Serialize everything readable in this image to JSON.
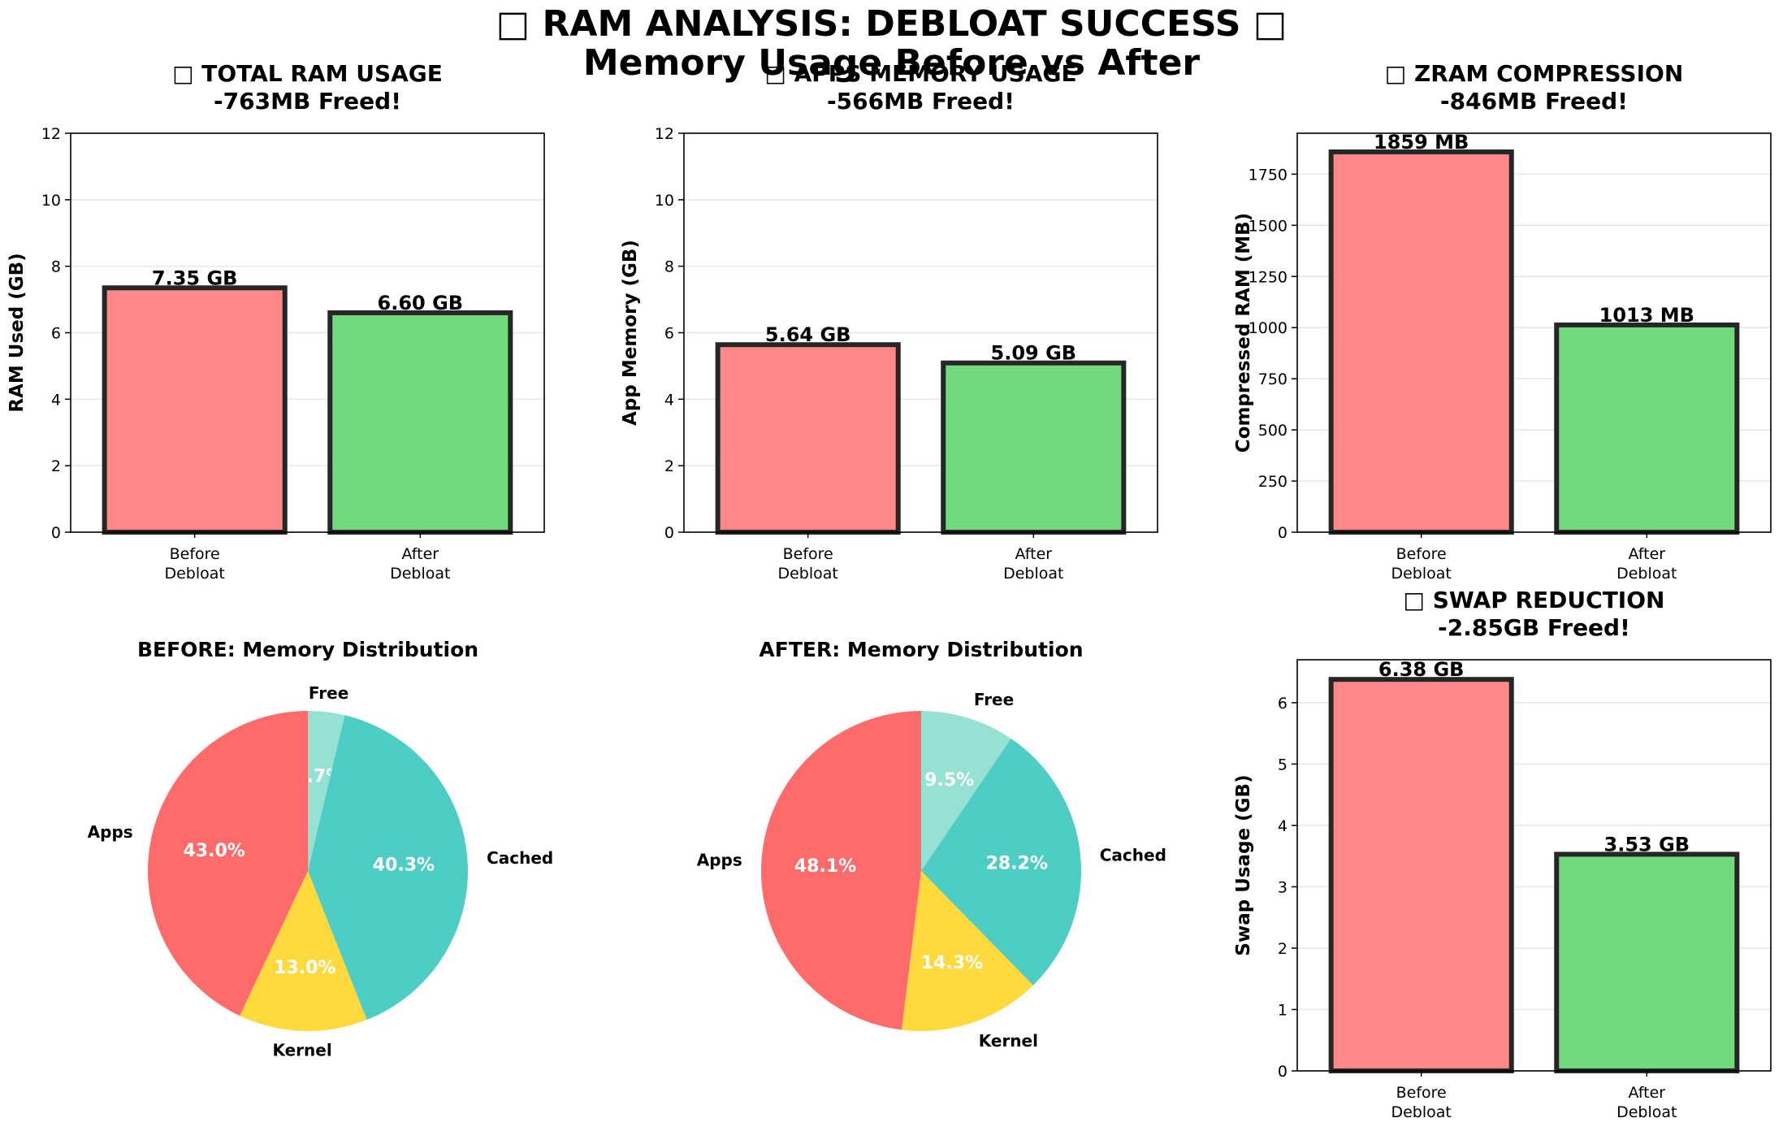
{
  "figure": {
    "title_line1": "□ RAM ANALYSIS: DEBLOAT SUCCESS □",
    "title_line2": "Memory Usage Before vs After"
  },
  "chart_data": [
    {
      "type": "bar",
      "id": "total-ram",
      "title": [
        "□ TOTAL RAM USAGE",
        "-763MB Freed!"
      ],
      "categories": [
        "Before\nDebloat",
        "After\nDebloat"
      ],
      "values": [
        7.35,
        6.6
      ],
      "value_labels": [
        "7.35 GB",
        "6.60 GB"
      ],
      "ylabel": "RAM Used (GB)",
      "ylim": [
        0,
        12
      ],
      "yticks": [
        0,
        2,
        4,
        6,
        8,
        10,
        12
      ],
      "colors": [
        "#ff8787",
        "#72d97f"
      ],
      "grid": "y"
    },
    {
      "type": "bar",
      "id": "apps-memory",
      "title": [
        "□ APPS MEMORY USAGE",
        "-566MB Freed!"
      ],
      "categories": [
        "Before\nDebloat",
        "After\nDebloat"
      ],
      "values": [
        5.64,
        5.09
      ],
      "value_labels": [
        "5.64 GB",
        "5.09 GB"
      ],
      "ylabel": "App Memory (GB)",
      "ylim": [
        0,
        12
      ],
      "yticks": [
        0,
        2,
        4,
        6,
        8,
        10,
        12
      ],
      "colors": [
        "#ff8787",
        "#72d97f"
      ],
      "grid": "y"
    },
    {
      "type": "bar",
      "id": "zram",
      "title": [
        "□ ZRAM COMPRESSION",
        "-846MB Freed!"
      ],
      "categories": [
        "Before\nDebloat",
        "After\nDebloat"
      ],
      "values": [
        1859,
        1013
      ],
      "value_labels": [
        "1859 MB",
        "1013 MB"
      ],
      "ylabel": "Compressed RAM (MB)",
      "ylim": [
        0,
        1950
      ],
      "yticks": [
        0,
        250,
        500,
        750,
        1000,
        1250,
        1500,
        1750
      ],
      "colors": [
        "#ff8787",
        "#72d97f"
      ],
      "grid": "y"
    },
    {
      "type": "pie",
      "id": "before-dist",
      "title": [
        "BEFORE: Memory Distribution"
      ],
      "labels": [
        "Free",
        "Cached",
        "Kernel",
        "Apps"
      ],
      "values": [
        3.7,
        40.3,
        13.0,
        43.0
      ],
      "pct_labels": [
        "3.7%",
        "40.3%",
        "13.0%",
        "43.0%"
      ],
      "colors": [
        "#95e1d3",
        "#4ecdc4",
        "#ffd93d",
        "#ff6b6b"
      ],
      "start": "top, clockwise"
    },
    {
      "type": "pie",
      "id": "after-dist",
      "title": [
        "AFTER: Memory Distribution"
      ],
      "labels": [
        "Free",
        "Cached",
        "Kernel",
        "Apps"
      ],
      "values": [
        9.5,
        28.2,
        14.3,
        48.1
      ],
      "pct_labels": [
        "9.5%",
        "28.2%",
        "14.3%",
        "48.1%"
      ],
      "colors": [
        "#95e1d3",
        "#4ecdc4",
        "#ffd93d",
        "#ff6b6b"
      ],
      "start": "top, clockwise"
    },
    {
      "type": "bar",
      "id": "swap",
      "title": [
        "□ SWAP REDUCTION",
        "-2.85GB Freed!"
      ],
      "categories": [
        "Before\nDebloat",
        "After\nDebloat"
      ],
      "values": [
        6.38,
        3.53
      ],
      "value_labels": [
        "6.38 GB",
        "3.53 GB"
      ],
      "ylabel": "Swap Usage (GB)",
      "ylim": [
        0,
        6.7
      ],
      "yticks": [
        0,
        1,
        2,
        3,
        4,
        5,
        6
      ],
      "colors": [
        "#ff8787",
        "#72d97f"
      ],
      "grid": "y"
    }
  ]
}
